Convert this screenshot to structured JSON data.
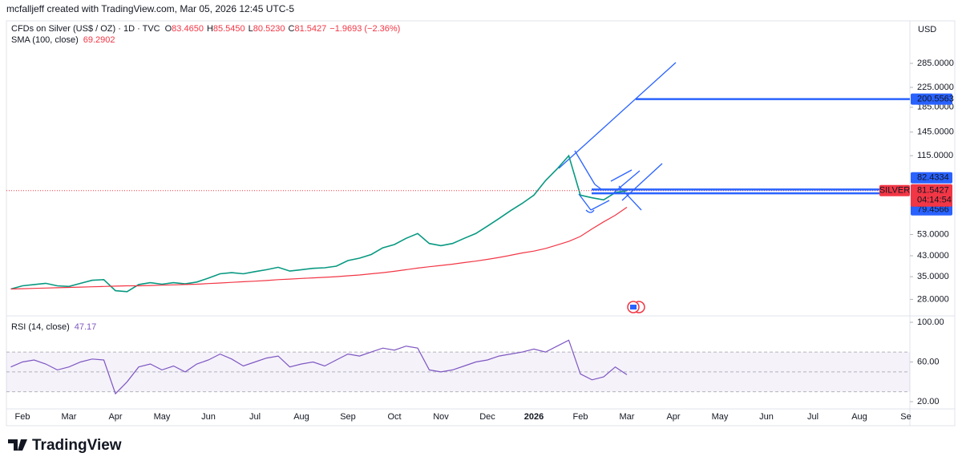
{
  "header": {
    "credit": "mcfalljeff created with TradingView.com, Mar 05, 2026 12:45 UTC-5",
    "currency": "USD",
    "brand": "TradingView"
  },
  "chart_data": [
    {
      "type": "line",
      "title": "CFDs on Silver (US$ / OZ) · 1D · TVC",
      "ohlc": [
        {
          "key": "O",
          "value": "83.4650"
        },
        {
          "key": "H",
          "value": "85.5450"
        },
        {
          "key": "L",
          "value": "80.5230"
        },
        {
          "key": "C",
          "value": "81.5427"
        }
      ],
      "change": "−1.9693 (−2.36%)",
      "categories": [
        null,
        "Feb",
        null,
        null,
        null,
        "Mar",
        null,
        null,
        null,
        "Apr",
        null,
        null,
        null,
        "May",
        null,
        null,
        null,
        "Jun",
        null,
        null,
        null,
        "Jul",
        null,
        null,
        null,
        "Aug",
        null,
        null,
        null,
        "Sep",
        null,
        null,
        null,
        "Oct",
        null,
        null,
        null,
        "Nov",
        null,
        null,
        null,
        "Dec",
        null,
        null,
        null,
        "2026",
        null,
        null,
        null,
        "Feb",
        null,
        null,
        null,
        "Mar",
        null,
        null,
        null,
        "Apr",
        null,
        null,
        null,
        "May",
        null,
        null,
        null,
        "Jun",
        null,
        null,
        null,
        "Jul",
        null,
        null,
        null,
        "Aug",
        null,
        null,
        null,
        "Se"
      ],
      "series": [
        {
          "name": "SILVER",
          "color": "#089981",
          "values": [
            31.0,
            32.0,
            32.4,
            32.8,
            32.0,
            31.8,
            32.8,
            33.8,
            34.0,
            30.5,
            30.2,
            32.4,
            33.0,
            32.5,
            33.0,
            32.6,
            33.2,
            34.5,
            36.0,
            36.4,
            36.0,
            36.8,
            37.5,
            38.4,
            37.0,
            37.5,
            38.0,
            38.2,
            38.8,
            41.0,
            42.0,
            43.5,
            46.5,
            48.0,
            51.0,
            53.5,
            48.5,
            47.5,
            48.5,
            51.0,
            53.5,
            57.5,
            62.0,
            67.0,
            72.0,
            78.0,
            90.0,
            101.0,
            115.0,
            78.0,
            76.0,
            74.5,
            80.0,
            81.5427,
            null,
            null,
            null,
            null,
            null,
            null,
            null,
            null,
            null,
            null,
            null,
            null,
            null,
            null,
            null,
            null,
            null,
            null,
            null,
            null,
            null,
            null,
            null,
            null
          ]
        },
        {
          "name": "SMA (100, close)",
          "color": "#f23645",
          "values": [
            31.0,
            31.1,
            31.2,
            31.3,
            31.4,
            31.5,
            31.6,
            31.7,
            31.8,
            31.9,
            32.0,
            32.0,
            32.1,
            32.2,
            32.3,
            32.4,
            32.5,
            32.7,
            32.9,
            33.1,
            33.3,
            33.5,
            33.7,
            34.0,
            34.2,
            34.4,
            34.6,
            34.8,
            35.0,
            35.3,
            35.6,
            36.0,
            36.4,
            36.9,
            37.5,
            38.1,
            38.6,
            39.1,
            39.6,
            40.2,
            40.8,
            41.5,
            42.3,
            43.2,
            44.2,
            45.0,
            46.2,
            47.8,
            49.5,
            52.0,
            56.0,
            60.0,
            64.0,
            69.2902,
            null,
            null,
            null,
            null,
            null,
            null,
            null,
            null,
            null,
            null,
            null,
            null,
            null,
            null,
            null,
            null,
            null,
            null,
            null,
            null,
            null,
            null,
            null,
            null
          ]
        }
      ],
      "log": true,
      "ylim": [
        24,
        426
      ],
      "yticks": [
        {
          "value": 285,
          "label": "285.0000"
        },
        {
          "value": 225,
          "label": "225.0000"
        },
        {
          "value": 185,
          "label": "185.0000"
        },
        {
          "value": 145,
          "label": "145.0000"
        },
        {
          "value": 115,
          "label": "115.0000"
        },
        {
          "value": 53,
          "label": "53.0000"
        },
        {
          "value": 43,
          "label": "43.0000"
        },
        {
          "value": 35,
          "label": "35.0000"
        },
        {
          "value": 28,
          "label": "28.0000"
        }
      ],
      "levels": [
        200.5563,
        82.4334,
        79.4566
      ],
      "countdown": "04:14:54"
    },
    {
      "type": "line",
      "series": [
        {
          "name": "RSI (14, close)",
          "color": "#7e57c2",
          "values": [
            55,
            60,
            62,
            58,
            52,
            55,
            60,
            63,
            62,
            28,
            40,
            55,
            58,
            52,
            56,
            50,
            58,
            62,
            68,
            63,
            56,
            60,
            64,
            66,
            55,
            58,
            60,
            56,
            62,
            68,
            66,
            70,
            74,
            72,
            76,
            74,
            52,
            50,
            52,
            56,
            60,
            62,
            66,
            68,
            70,
            73,
            70,
            76,
            82,
            48,
            42,
            45,
            55,
            47.17
          ]
        }
      ],
      "ylim": [
        12.73,
        104.04
      ],
      "yticks": [
        {
          "value": 100,
          "label": "100.00"
        },
        {
          "value": 60,
          "label": "60.00"
        },
        {
          "value": 20,
          "label": "20.00"
        }
      ],
      "levels": [
        70,
        50,
        30
      ]
    }
  ]
}
